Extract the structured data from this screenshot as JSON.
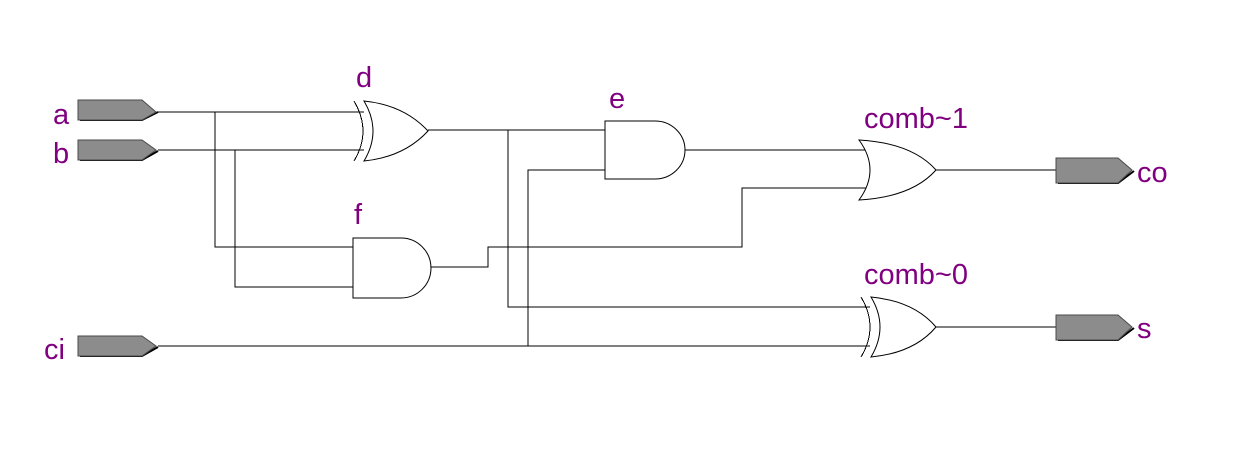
{
  "diagram": {
    "inputs": [
      {
        "id": "a",
        "label": "a"
      },
      {
        "id": "b",
        "label": "b"
      },
      {
        "id": "ci",
        "label": "ci"
      }
    ],
    "outputs": [
      {
        "id": "co",
        "label": "co"
      },
      {
        "id": "s",
        "label": "s"
      }
    ],
    "gates": [
      {
        "id": "d",
        "label": "d",
        "type": "xor"
      },
      {
        "id": "e",
        "label": "e",
        "type": "and"
      },
      {
        "id": "f",
        "label": "f",
        "type": "and"
      },
      {
        "id": "comb1",
        "label": "comb~1",
        "type": "or"
      },
      {
        "id": "comb0",
        "label": "comb~0",
        "type": "xor"
      }
    ],
    "colors": {
      "label": "#800080",
      "port_fill": "#8c8c8c",
      "wire": "#000000"
    }
  }
}
